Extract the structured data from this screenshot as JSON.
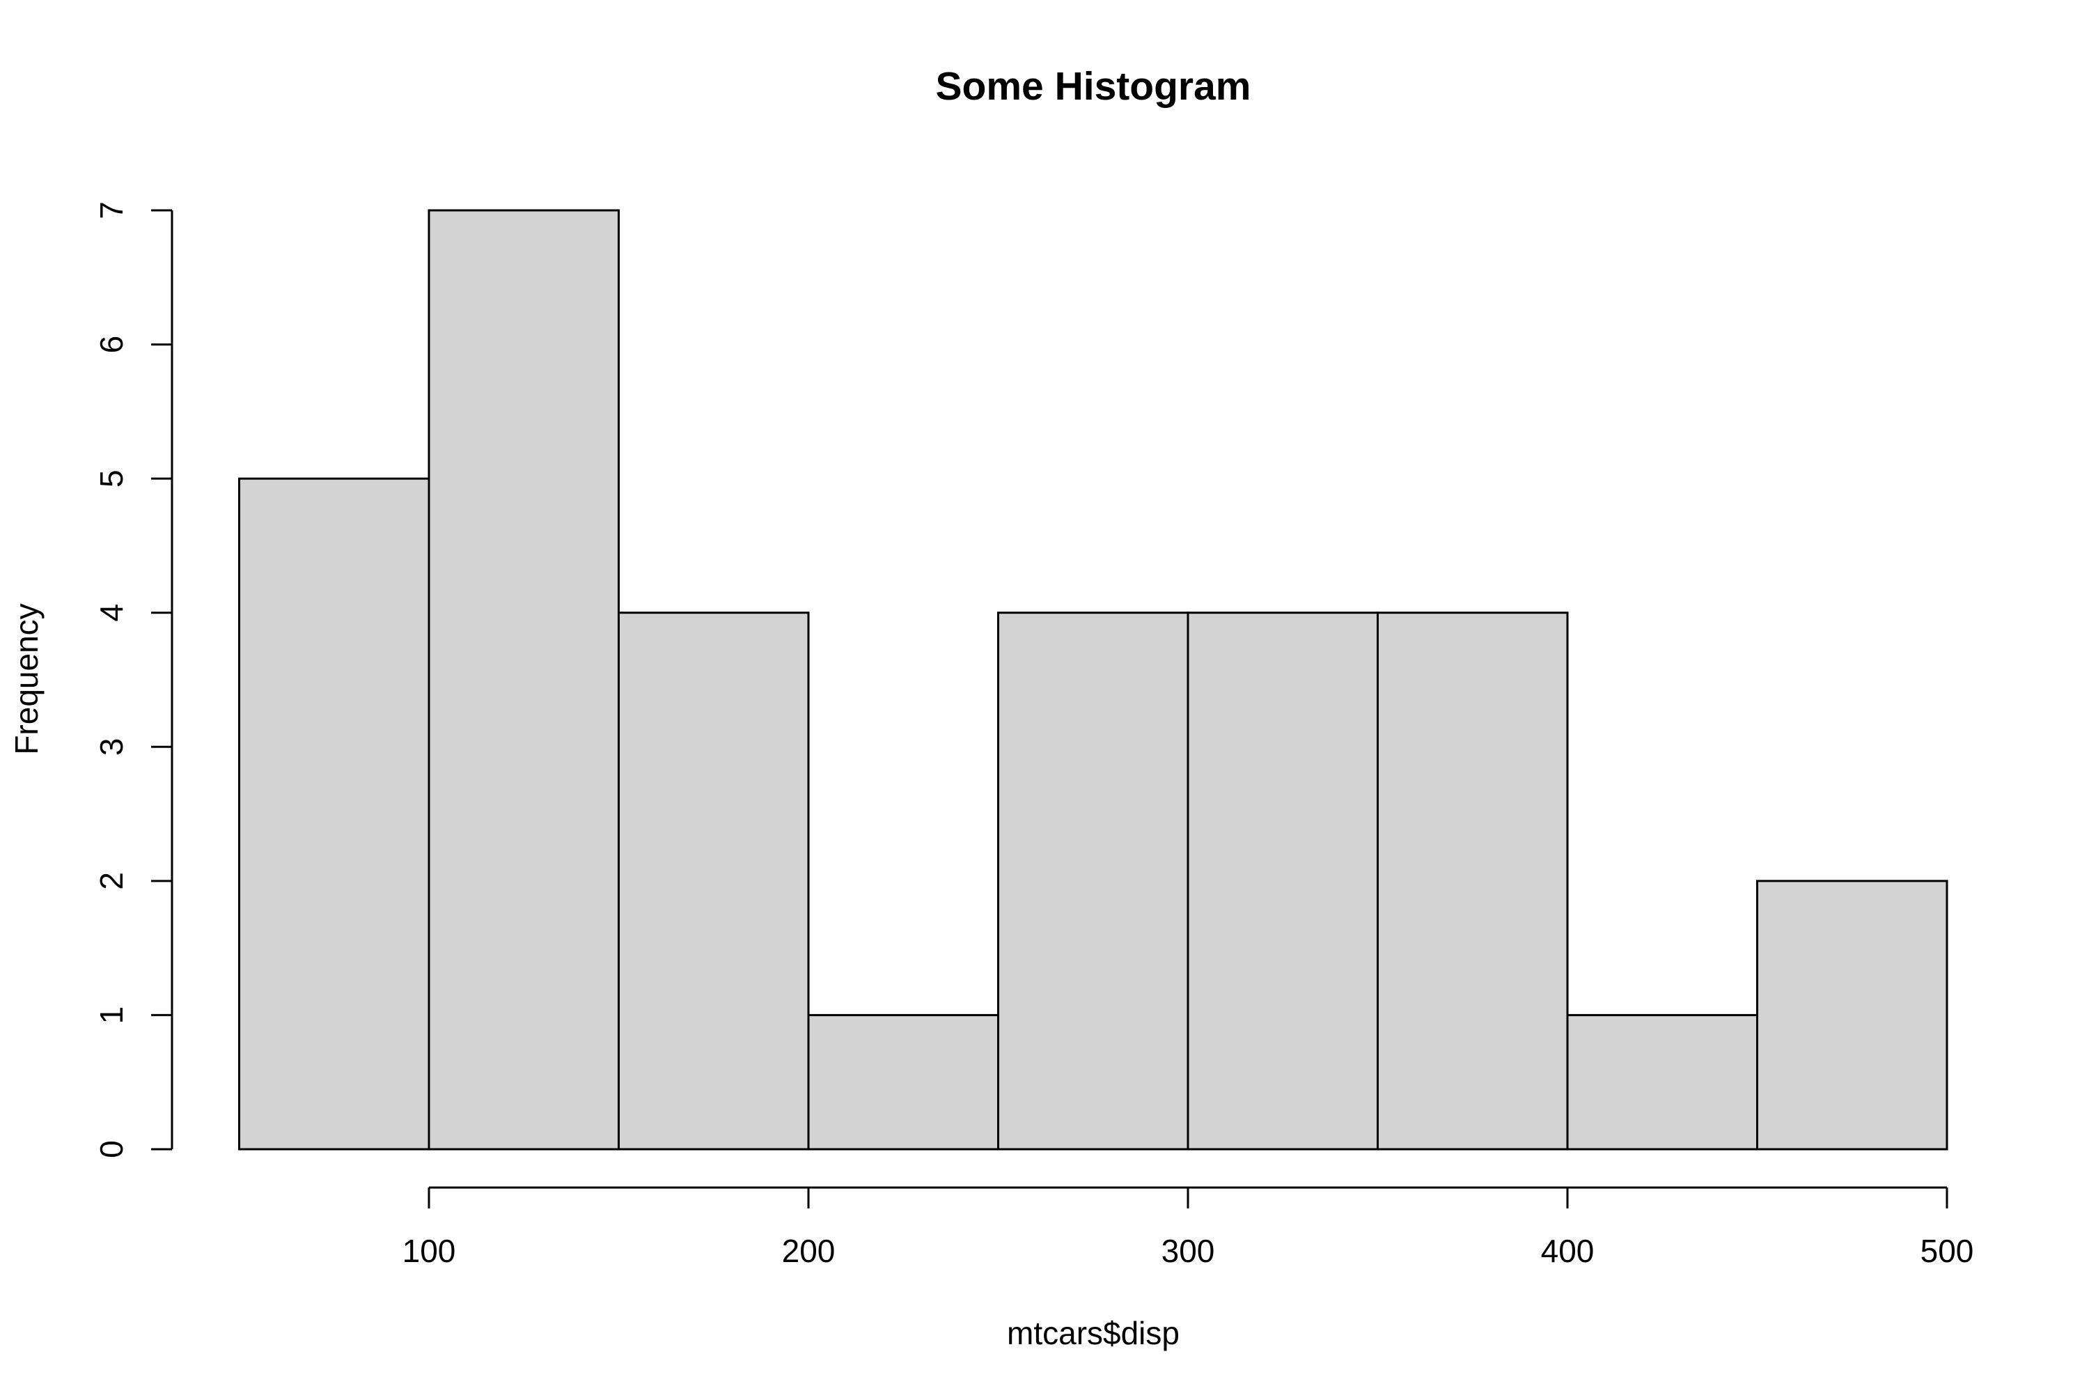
{
  "chart_data": {
    "type": "bar",
    "title": "Some Histogram",
    "xlabel": "mtcars$disp",
    "ylabel": "Frequency",
    "bins": [
      {
        "start": 50,
        "end": 100,
        "count": 5
      },
      {
        "start": 100,
        "end": 150,
        "count": 7
      },
      {
        "start": 150,
        "end": 200,
        "count": 4
      },
      {
        "start": 200,
        "end": 250,
        "count": 1
      },
      {
        "start": 250,
        "end": 300,
        "count": 4
      },
      {
        "start": 300,
        "end": 350,
        "count": 4
      },
      {
        "start": 350,
        "end": 400,
        "count": 4
      },
      {
        "start": 400,
        "end": 450,
        "count": 1
      },
      {
        "start": 450,
        "end": 500,
        "count": 2
      }
    ],
    "x_ticks": [
      100,
      200,
      300,
      400,
      500
    ],
    "y_ticks": [
      0,
      1,
      2,
      3,
      4,
      5,
      6,
      7
    ],
    "xlim": [
      50,
      500
    ],
    "ylim": [
      0,
      7
    ],
    "grid": false,
    "bar_fill": "#d3d3d3",
    "bar_stroke": "#000000"
  }
}
